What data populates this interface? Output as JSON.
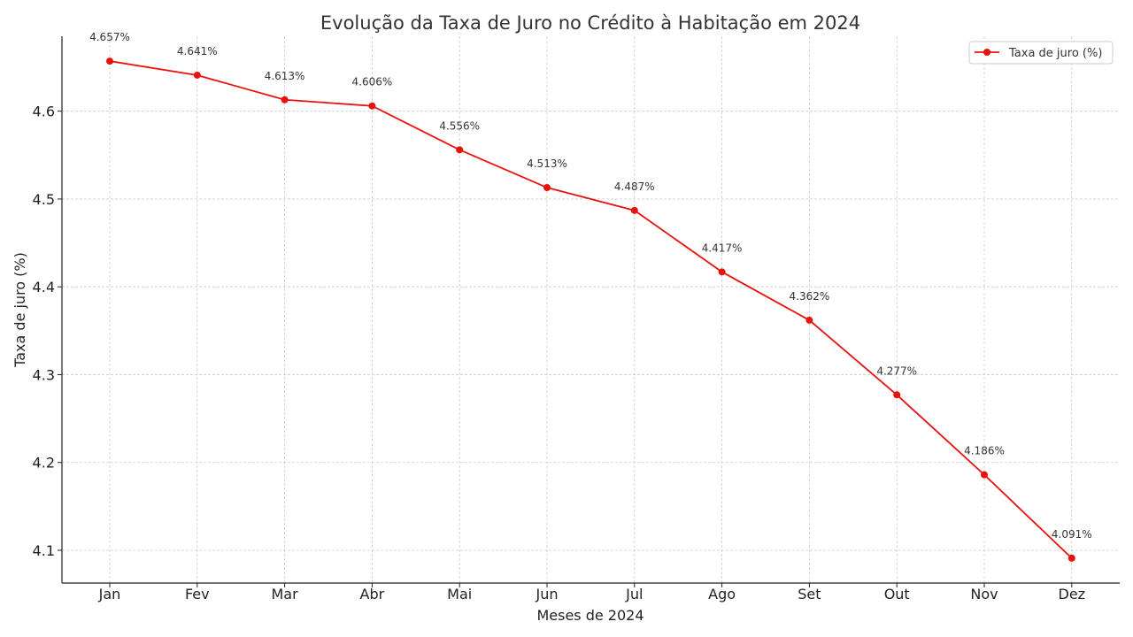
{
  "chart_data": {
    "type": "line",
    "title": "Evolução da Taxa de Juro no Crédito à Habitação em 2024",
    "xlabel": "Meses de 2024",
    "ylabel": "Taxa de juro (%)",
    "categories": [
      "Jan",
      "Fev",
      "Mar",
      "Abr",
      "Mai",
      "Jun",
      "Jul",
      "Ago",
      "Set",
      "Out",
      "Nov",
      "Dez"
    ],
    "series": [
      {
        "name": "Taxa de juro (%)",
        "values": [
          4.657,
          4.641,
          4.613,
          4.606,
          4.556,
          4.513,
          4.487,
          4.417,
          4.362,
          4.277,
          4.186,
          4.091
        ],
        "labels": [
          "4.657%",
          "4.641%",
          "4.613%",
          "4.606%",
          "4.556%",
          "4.513%",
          "4.487%",
          "4.417%",
          "4.362%",
          "4.277%",
          "4.186%",
          "4.091%"
        ],
        "color": "#e8120c"
      }
    ],
    "yticks": [
      "4.1",
      "4.2",
      "4.3",
      "4.4",
      "4.5",
      "4.6"
    ],
    "ylim": [
      4.0627,
      4.6853
    ],
    "grid": true,
    "legend_position": "top-right"
  }
}
